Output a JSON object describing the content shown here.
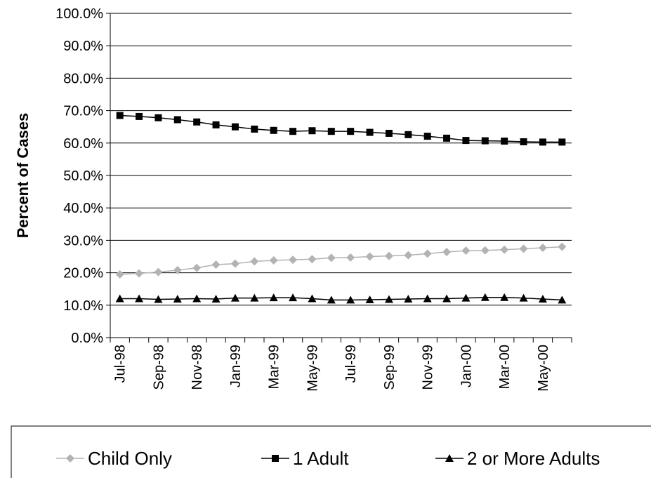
{
  "chart_data": {
    "type": "line",
    "ylabel": "Percent of Cases",
    "xlabel": "",
    "ylim": [
      0,
      100
    ],
    "y_ticks": [
      "0.0%",
      "10.0%",
      "20.0%",
      "30.0%",
      "40.0%",
      "50.0%",
      "60.0%",
      "70.0%",
      "80.0%",
      "90.0%",
      "100.0%"
    ],
    "x_tick_labels": [
      "Jul-98",
      "Sep-98",
      "Nov-98",
      "Jan-99",
      "Mar-99",
      "May-99",
      "Jul-99",
      "Sep-99",
      "Nov-99",
      "Jan-00",
      "Mar-00",
      "May-00"
    ],
    "categories": [
      "Jul-98",
      "Aug-98",
      "Sep-98",
      "Oct-98",
      "Nov-98",
      "Dec-98",
      "Jan-99",
      "Feb-99",
      "Mar-99",
      "Apr-99",
      "May-99",
      "Jun-99",
      "Jul-99",
      "Aug-99",
      "Sep-99",
      "Oct-99",
      "Nov-99",
      "Dec-99",
      "Jan-00",
      "Feb-00",
      "Mar-00",
      "Apr-00",
      "May-00",
      "Jun-00"
    ],
    "grid": true,
    "legend_position": "bottom",
    "series": [
      {
        "name": "Child Only",
        "color": "#b3b3b3",
        "marker": "diamond",
        "values": [
          19.5,
          19.8,
          20.2,
          20.8,
          21.5,
          22.5,
          22.8,
          23.5,
          23.8,
          24.0,
          24.2,
          24.6,
          24.7,
          25.0,
          25.2,
          25.4,
          25.9,
          26.4,
          26.8,
          26.9,
          27.1,
          27.4,
          27.7,
          28.0
        ]
      },
      {
        "name": "1 Adult",
        "color": "#000000",
        "marker": "square",
        "values": [
          68.5,
          68.2,
          67.8,
          67.2,
          66.5,
          65.6,
          65.0,
          64.3,
          63.9,
          63.6,
          63.8,
          63.6,
          63.6,
          63.3,
          63.0,
          62.6,
          62.1,
          61.5,
          60.8,
          60.7,
          60.6,
          60.4,
          60.3,
          60.3
        ]
      },
      {
        "name": "2 or More Adults",
        "color": "#000000",
        "marker": "triangle",
        "values": [
          12.0,
          12.0,
          11.8,
          11.9,
          12.0,
          11.9,
          12.2,
          12.2,
          12.3,
          12.3,
          12.0,
          11.6,
          11.6,
          11.7,
          11.8,
          11.9,
          12.0,
          12.0,
          12.2,
          12.4,
          12.4,
          12.2,
          11.9,
          11.6
        ]
      }
    ]
  }
}
